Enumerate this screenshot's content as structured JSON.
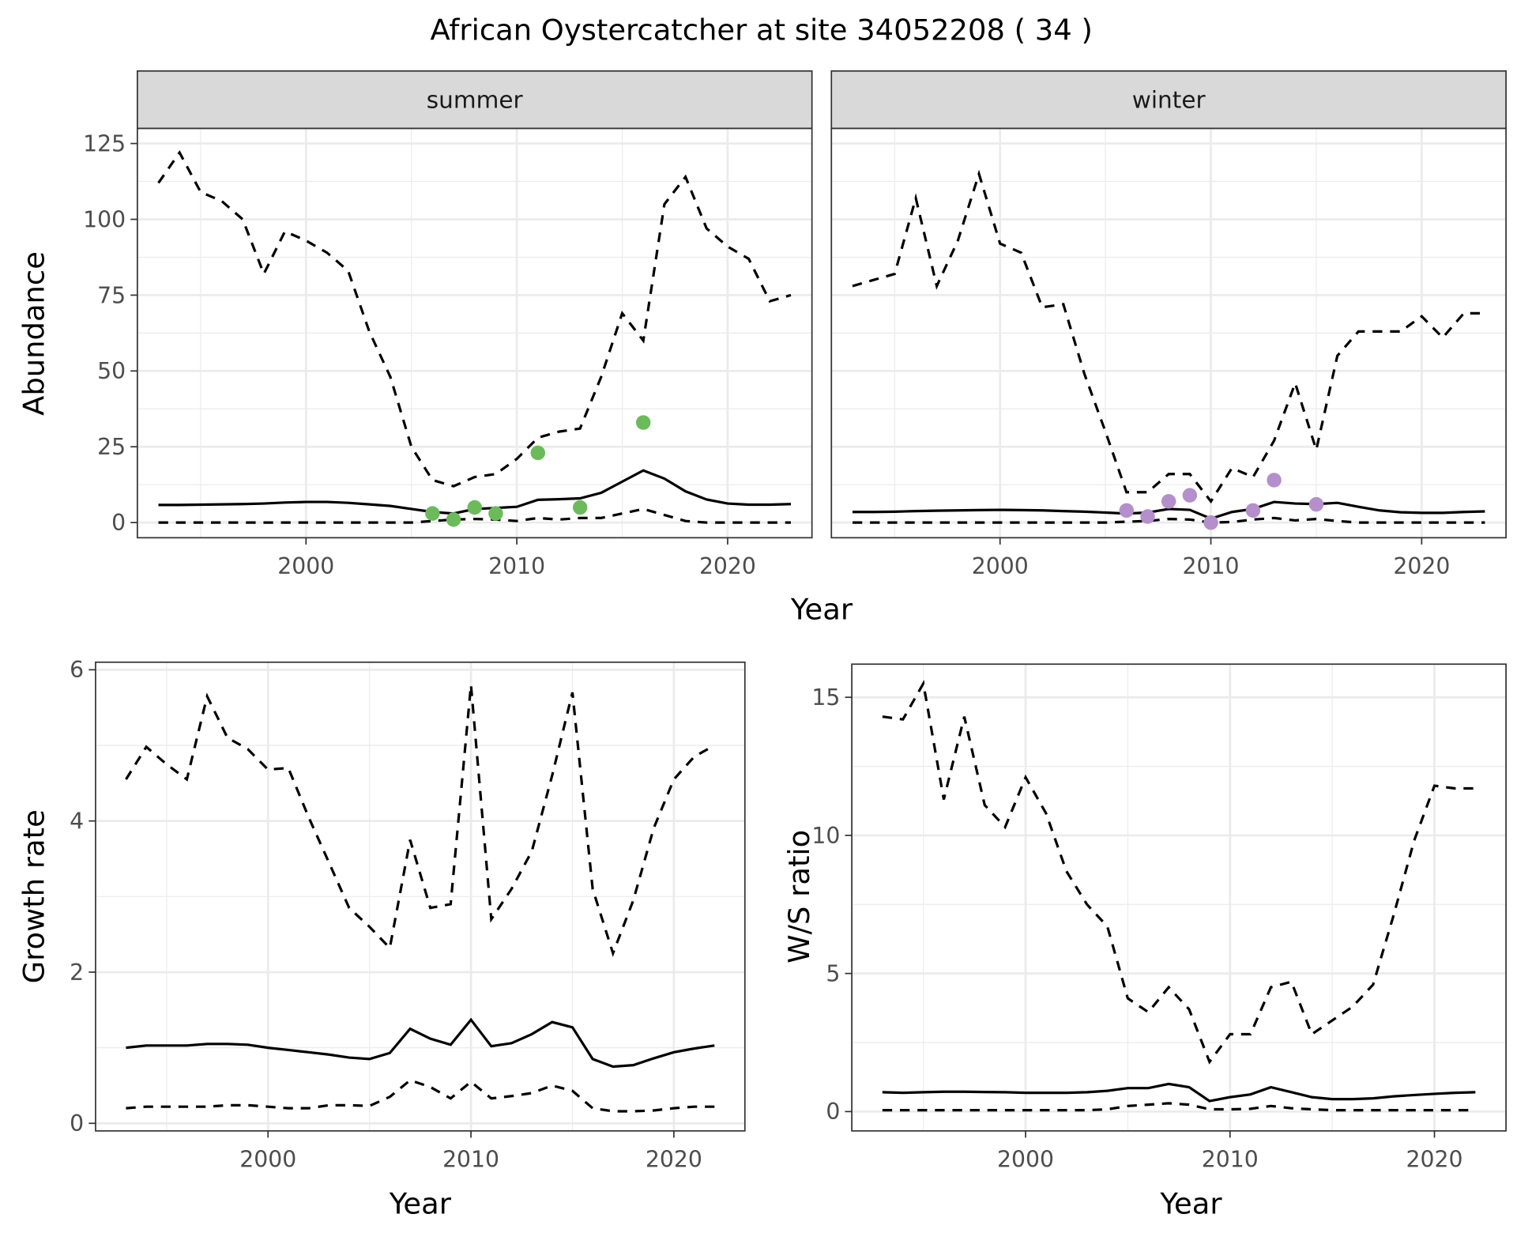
{
  "title": "African Oystercatcher at site 34052208 ( 34 )",
  "top_xlabel": "Year",
  "top_ylabel": "Abundance",
  "colors": {
    "summer_points": "#6bbb5a",
    "winter_points": "#b48fcb",
    "lines": "#000000",
    "grid": "#ebebeb",
    "strip": "#d9d9d9"
  },
  "chart_data": [
    {
      "type": "line",
      "strip": "summer",
      "xlim": [
        1992,
        2024
      ],
      "ylim": [
        -5,
        130
      ],
      "xticks": [
        2000,
        2010,
        2020
      ],
      "yticks": [
        0,
        25,
        50,
        75,
        100,
        125
      ],
      "grid": true,
      "x": [
        1993,
        1994,
        1995,
        1996,
        1997,
        1998,
        1999,
        2000,
        2001,
        2002,
        2003,
        2004,
        2005,
        2006,
        2007,
        2008,
        2009,
        2010,
        2011,
        2012,
        2013,
        2014,
        2015,
        2016,
        2017,
        2018,
        2019,
        2020,
        2021,
        2022,
        2023
      ],
      "series": [
        {
          "style": "dashed",
          "values": [
            112,
            122,
            109,
            106,
            100,
            82,
            96,
            93,
            89,
            83,
            63,
            48,
            25,
            14,
            12,
            15,
            16,
            21,
            28,
            30,
            31,
            48,
            69,
            60,
            105,
            114,
            97,
            91,
            87,
            73,
            75
          ]
        },
        {
          "style": "solid",
          "values": [
            5.8,
            5.8,
            5.9,
            6,
            6.1,
            6.3,
            6.6,
            6.8,
            6.8,
            6.5,
            6,
            5.5,
            4.5,
            3.5,
            3,
            4.5,
            4.8,
            5.2,
            7.5,
            7.7,
            8,
            9.8,
            13.5,
            17.2,
            14.5,
            10.3,
            7.6,
            6.3,
            5.9,
            5.9,
            6.1
          ]
        },
        {
          "style": "dashed",
          "values": [
            0,
            0,
            0,
            0,
            0,
            0,
            0,
            0,
            0,
            0,
            0,
            0,
            0,
            0.5,
            1,
            1.2,
            1,
            0.5,
            1.5,
            1,
            1.5,
            1.5,
            3,
            4.5,
            2.5,
            0.5,
            0,
            0,
            0,
            0,
            0
          ]
        }
      ],
      "points": {
        "x": [
          2006,
          2007,
          2008,
          2009,
          2011,
          2013,
          2016
        ],
        "y": [
          3,
          1,
          5,
          3,
          23,
          5,
          33
        ]
      }
    },
    {
      "type": "line",
      "strip": "winter",
      "xlim": [
        1992,
        2024
      ],
      "ylim": [
        -5,
        130
      ],
      "xticks": [
        2000,
        2010,
        2020
      ],
      "yticks": [
        0,
        25,
        50,
        75,
        100,
        125
      ],
      "grid": true,
      "x": [
        1993,
        1994,
        1995,
        1996,
        1997,
        1998,
        1999,
        2000,
        2001,
        2002,
        2003,
        2004,
        2005,
        2006,
        2007,
        2008,
        2009,
        2010,
        2011,
        2012,
        2013,
        2014,
        2015,
        2016,
        2017,
        2018,
        2019,
        2020,
        2021,
        2022,
        2023
      ],
      "series": [
        {
          "style": "dashed",
          "values": [
            78,
            80,
            82,
            107,
            78,
            93,
            115,
            92,
            89,
            71,
            72,
            49,
            30,
            10,
            10,
            16,
            16,
            7,
            18,
            15,
            27,
            46,
            24,
            55,
            63,
            63,
            63,
            68,
            61,
            69,
            69
          ]
        },
        {
          "style": "solid",
          "values": [
            3.5,
            3.5,
            3.6,
            3.8,
            3.9,
            4,
            4.1,
            4.2,
            4.1,
            4,
            3.8,
            3.6,
            3.3,
            3,
            3.3,
            4.5,
            4.2,
            1.3,
            3.5,
            4.5,
            6.8,
            6.3,
            6.1,
            6.5,
            5.2,
            4,
            3.4,
            3.2,
            3.2,
            3.5,
            3.7
          ]
        },
        {
          "style": "dashed",
          "values": [
            0,
            0,
            0,
            0,
            0,
            0,
            0,
            0,
            0,
            0,
            0,
            0,
            0,
            0.3,
            0.5,
            1.2,
            1,
            0,
            0.2,
            1,
            1.5,
            0.7,
            1.2,
            0.5,
            0,
            0,
            0,
            0,
            0,
            0,
            0
          ]
        }
      ],
      "points": {
        "x": [
          2006,
          2007,
          2008,
          2009,
          2010,
          2012,
          2013,
          2015
        ],
        "y": [
          4,
          2,
          7,
          9,
          0,
          4,
          14,
          6
        ]
      }
    },
    {
      "type": "line",
      "xlabel": "Year",
      "ylabel": "Growth rate",
      "xlim": [
        1991.5,
        2023.5
      ],
      "ylim": [
        -0.1,
        6.1
      ],
      "xticks": [
        2000,
        2010,
        2020
      ],
      "yticks": [
        0,
        2,
        4,
        6
      ],
      "grid": true,
      "x": [
        1993,
        1994,
        1995,
        1996,
        1997,
        1998,
        1999,
        2000,
        2001,
        2002,
        2003,
        2004,
        2005,
        2006,
        2007,
        2008,
        2009,
        2010,
        2011,
        2012,
        2013,
        2014,
        2015,
        2016,
        2017,
        2018,
        2019,
        2020,
        2021,
        2022
      ],
      "series": [
        {
          "style": "dashed",
          "values": [
            4.55,
            4.98,
            4.75,
            4.55,
            5.65,
            5.1,
            4.95,
            4.68,
            4.7,
            4.05,
            3.45,
            2.85,
            2.6,
            2.32,
            3.75,
            2.85,
            2.9,
            5.8,
            2.7,
            3.1,
            3.6,
            4.6,
            5.7,
            3.1,
            2.25,
            2.95,
            3.9,
            4.55,
            4.85,
            5.0
          ]
        },
        {
          "style": "solid",
          "values": [
            1.0,
            1.03,
            1.03,
            1.03,
            1.05,
            1.05,
            1.04,
            1.0,
            0.97,
            0.94,
            0.91,
            0.87,
            0.85,
            0.93,
            1.25,
            1.12,
            1.04,
            1.37,
            1.02,
            1.06,
            1.18,
            1.34,
            1.27,
            0.85,
            0.75,
            0.77,
            0.86,
            0.94,
            0.99,
            1.03
          ]
        },
        {
          "style": "dashed",
          "values": [
            0.2,
            0.22,
            0.22,
            0.22,
            0.22,
            0.24,
            0.24,
            0.22,
            0.2,
            0.2,
            0.24,
            0.24,
            0.23,
            0.35,
            0.57,
            0.48,
            0.33,
            0.55,
            0.33,
            0.36,
            0.4,
            0.5,
            0.43,
            0.2,
            0.16,
            0.16,
            0.17,
            0.2,
            0.22,
            0.22
          ]
        }
      ]
    },
    {
      "type": "line",
      "xlabel": "Year",
      "ylabel": "W/S ratio",
      "xlim": [
        1991.5,
        2023.5
      ],
      "ylim": [
        -0.7,
        16.2
      ],
      "xticks": [
        2000,
        2010,
        2020
      ],
      "yticks": [
        0,
        5,
        10,
        15
      ],
      "grid": true,
      "x": [
        1993,
        1994,
        1995,
        1996,
        1997,
        1998,
        1999,
        2000,
        2001,
        2002,
        2003,
        2004,
        2005,
        2006,
        2007,
        2008,
        2009,
        2010,
        2011,
        2012,
        2013,
        2014,
        2015,
        2016,
        2017,
        2018,
        2019,
        2020,
        2021,
        2022
      ],
      "series": [
        {
          "style": "dashed",
          "values": [
            14.3,
            14.2,
            15.5,
            11.3,
            14.3,
            11.1,
            10.3,
            12.1,
            10.8,
            8.7,
            7.5,
            6.7,
            4.1,
            3.6,
            4.5,
            3.7,
            1.8,
            2.8,
            2.8,
            4.5,
            4.7,
            2.8,
            3.3,
            3.8,
            4.6,
            7.1,
            9.8,
            11.8,
            11.7,
            11.7
          ]
        },
        {
          "style": "solid",
          "values": [
            0.7,
            0.68,
            0.7,
            0.72,
            0.72,
            0.71,
            0.7,
            0.68,
            0.68,
            0.68,
            0.7,
            0.75,
            0.85,
            0.85,
            1.0,
            0.88,
            0.38,
            0.52,
            0.62,
            0.88,
            0.7,
            0.52,
            0.45,
            0.45,
            0.48,
            0.55,
            0.6,
            0.64,
            0.68,
            0.7
          ]
        },
        {
          "style": "dashed",
          "values": [
            0.05,
            0.05,
            0.05,
            0.05,
            0.05,
            0.05,
            0.05,
            0.05,
            0.05,
            0.05,
            0.05,
            0.08,
            0.2,
            0.25,
            0.3,
            0.25,
            0.08,
            0.08,
            0.1,
            0.2,
            0.12,
            0.08,
            0.05,
            0.05,
            0.05,
            0.05,
            0.05,
            0.05,
            0.05,
            0.05
          ]
        }
      ]
    }
  ]
}
